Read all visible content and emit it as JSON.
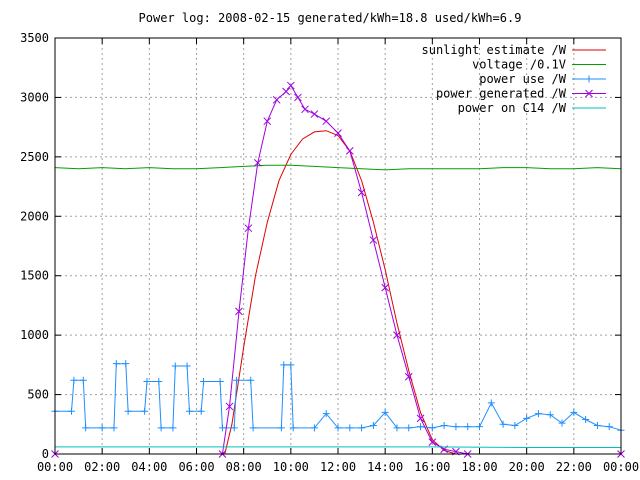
{
  "chart_data": {
    "type": "line",
    "title": "Power log: 2008-02-15 generated/kWh=18.8 used/kWh=6.9",
    "xlabel": "",
    "ylabel": "",
    "xlim": [
      0,
      24
    ],
    "ylim": [
      0,
      3500
    ],
    "grid": true,
    "legend_position": "top-right",
    "x_ticks": [
      {
        "value": 0,
        "label": "00:00"
      },
      {
        "value": 2,
        "label": "02:00"
      },
      {
        "value": 4,
        "label": "04:00"
      },
      {
        "value": 6,
        "label": "06:00"
      },
      {
        "value": 8,
        "label": "08:00"
      },
      {
        "value": 10,
        "label": "10:00"
      },
      {
        "value": 12,
        "label": "12:00"
      },
      {
        "value": 14,
        "label": "14:00"
      },
      {
        "value": 16,
        "label": "16:00"
      },
      {
        "value": 18,
        "label": "18:00"
      },
      {
        "value": 20,
        "label": "20:00"
      },
      {
        "value": 22,
        "label": "22:00"
      },
      {
        "value": 24,
        "label": "00:00"
      }
    ],
    "y_ticks": [
      {
        "value": 0,
        "label": "0"
      },
      {
        "value": 500,
        "label": "500"
      },
      {
        "value": 1000,
        "label": "1000"
      },
      {
        "value": 1500,
        "label": "1500"
      },
      {
        "value": 2000,
        "label": "2000"
      },
      {
        "value": 2500,
        "label": "2500"
      },
      {
        "value": 3000,
        "label": "3000"
      },
      {
        "value": 3500,
        "label": "3500"
      }
    ],
    "series": [
      {
        "name": "sunlight estimate /W",
        "color": "#e00000",
        "marker": "none",
        "x": [
          7.2,
          7.5,
          8.0,
          8.5,
          9.0,
          9.5,
          10.0,
          10.5,
          11.0,
          11.5,
          12.0,
          12.5,
          13.0,
          13.5,
          14.0,
          14.5,
          15.0,
          15.5,
          16.0,
          16.5,
          17.0
        ],
        "y": [
          0,
          250,
          900,
          1500,
          1950,
          2300,
          2520,
          2650,
          2710,
          2720,
          2680,
          2550,
          2300,
          1950,
          1550,
          1100,
          700,
          350,
          120,
          30,
          0
        ]
      },
      {
        "name": "voltage /0.1V",
        "color": "#00a000",
        "marker": "none",
        "x": [
          0,
          1,
          2,
          3,
          4,
          5,
          6,
          7,
          8,
          9,
          10,
          11,
          12,
          13,
          14,
          15,
          16,
          17,
          18,
          19,
          20,
          21,
          22,
          23,
          24
        ],
        "y": [
          2410,
          2400,
          2410,
          2400,
          2410,
          2400,
          2400,
          2410,
          2420,
          2430,
          2430,
          2420,
          2410,
          2400,
          2390,
          2400,
          2400,
          2400,
          2400,
          2410,
          2410,
          2400,
          2400,
          2410,
          2400
        ]
      },
      {
        "name": "power use /W",
        "color": "#1e8fff",
        "marker": "plus",
        "x": [
          0,
          0.7,
          0.8,
          1.2,
          1.3,
          2,
          2.5,
          2.6,
          3.0,
          3.1,
          3.8,
          3.9,
          4.4,
          4.5,
          5.0,
          5.1,
          5.6,
          5.7,
          6.2,
          6.3,
          7.0,
          7.1,
          7.6,
          7.7,
          8.3,
          8.4,
          9.6,
          9.7,
          10.0,
          10.1,
          11,
          11.5,
          12,
          12.5,
          13,
          13.5,
          14,
          14.5,
          15,
          15.5,
          16,
          16.5,
          17,
          17.5,
          18,
          18.5,
          19,
          19.5,
          20,
          20.5,
          21,
          21.5,
          22,
          22.5,
          23,
          23.5,
          24
        ],
        "y": [
          360,
          360,
          620,
          620,
          220,
          220,
          220,
          760,
          760,
          360,
          360,
          610,
          610,
          220,
          220,
          740,
          740,
          360,
          360,
          610,
          610,
          220,
          220,
          620,
          620,
          220,
          220,
          750,
          750,
          220,
          220,
          340,
          220,
          220,
          220,
          240,
          350,
          220,
          220,
          230,
          220,
          240,
          230,
          230,
          230,
          430,
          250,
          240,
          300,
          340,
          330,
          260,
          350,
          290,
          240,
          230,
          200
        ]
      },
      {
        "name": "power generated /W",
        "color": "#a000e0",
        "marker": "cross",
        "x": [
          0,
          7.1,
          7.4,
          7.8,
          8.2,
          8.6,
          9.0,
          9.4,
          9.8,
          10.0,
          10.3,
          10.6,
          11.0,
          11.5,
          12.0,
          12.5,
          13.0,
          13.5,
          14.0,
          14.5,
          15.0,
          15.5,
          16.0,
          16.5,
          17.0,
          17.5,
          24
        ],
        "y": [
          0,
          0,
          400,
          1200,
          1900,
          2450,
          2800,
          2980,
          3050,
          3100,
          3000,
          2900,
          2860,
          2800,
          2700,
          2550,
          2200,
          1800,
          1400,
          1000,
          650,
          300,
          100,
          40,
          20,
          0,
          0
        ]
      },
      {
        "name": "power on C14 /W",
        "color": "#00c0c0",
        "marker": "none",
        "x": [
          0,
          4,
          8,
          12,
          16,
          20,
          24
        ],
        "y": [
          60,
          60,
          60,
          60,
          60,
          55,
          55
        ]
      }
    ]
  }
}
